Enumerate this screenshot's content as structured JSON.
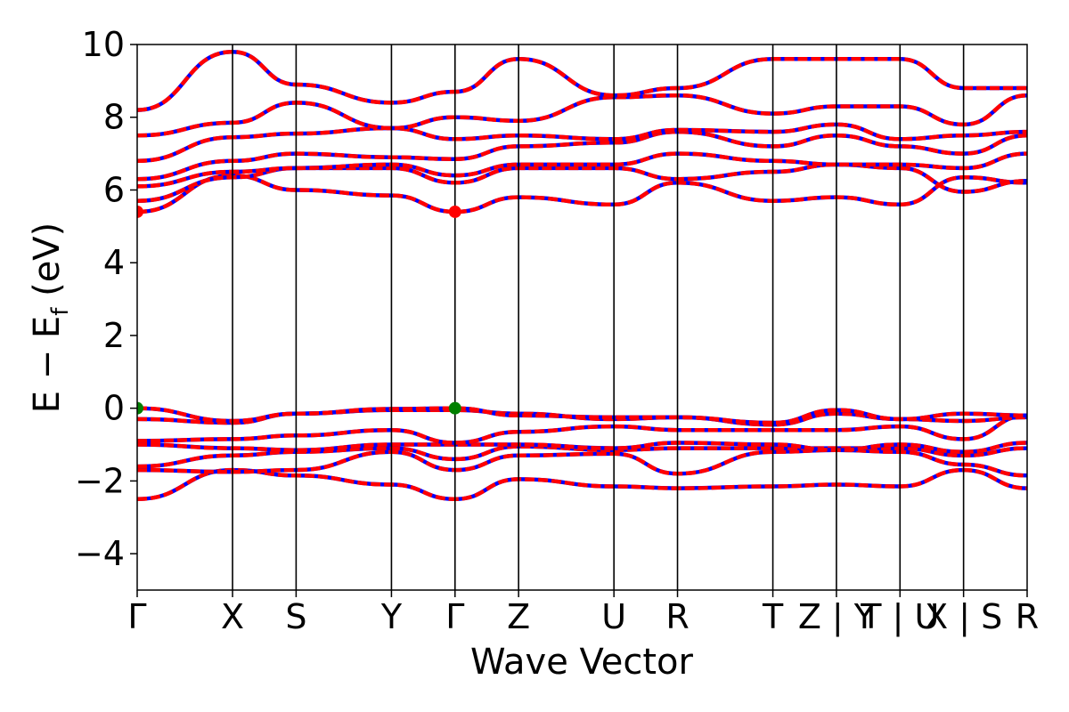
{
  "chart_data": {
    "type": "line",
    "xlabel": "Wave Vector",
    "ylabel": {
      "main": "E − E",
      "sub": "f",
      "unit": " (eV)"
    },
    "ylim": [
      -5,
      10
    ],
    "yticks": [
      -4,
      -2,
      0,
      2,
      4,
      6,
      8,
      10
    ],
    "ytick_labels": [
      "−4",
      "−2",
      "0",
      "2",
      "4",
      "6",
      "8",
      "10"
    ],
    "xlim": [
      0,
      14
    ],
    "kpoints": [
      {
        "x": 0.0,
        "label": "Γ"
      },
      {
        "x": 1.5,
        "label": "X"
      },
      {
        "x": 2.5,
        "label": "S"
      },
      {
        "x": 4.0,
        "label": "Y"
      },
      {
        "x": 5.0,
        "label": "Γ"
      },
      {
        "x": 6.0,
        "label": "Z"
      },
      {
        "x": 7.5,
        "label": "U"
      },
      {
        "x": 8.5,
        "label": "R"
      },
      {
        "x": 10.0,
        "label": "T"
      },
      {
        "x": 11.0,
        "label": "Z | Y"
      },
      {
        "x": 12.0,
        "label": "T | U"
      },
      {
        "x": 13.0,
        "label": "X | S"
      },
      {
        "x": 14.0,
        "label": "R"
      }
    ],
    "grid": false,
    "series_colors": {
      "primary": "#0000ff",
      "overlay": "#ff0000"
    },
    "band_energies_at_kpoints": [
      [
        -2.5,
        -1.7,
        -1.85,
        -2.1,
        -2.5,
        -1.95,
        -2.15,
        -2.2,
        -2.15,
        -2.1,
        -2.15,
        -1.7,
        -2.2
      ],
      [
        -1.7,
        -1.75,
        -1.7,
        -1.2,
        -1.7,
        -1.3,
        -1.25,
        -1.8,
        -1.2,
        -1.15,
        -1.2,
        -1.55,
        -1.85
      ],
      [
        -1.6,
        -1.3,
        -1.2,
        -1.1,
        -1.4,
        -1.05,
        -1.15,
        -1.1,
        -1.1,
        -1.1,
        -1.1,
        -1.3,
        -1.1
      ],
      [
        -1.0,
        -1.1,
        -1.15,
        -1.0,
        -1.0,
        -1.0,
        -1.1,
        -0.95,
        -1.0,
        -1.15,
        -1.0,
        -1.2,
        -0.95
      ],
      [
        -0.9,
        -0.85,
        -0.75,
        -0.6,
        -0.95,
        -0.65,
        -0.5,
        -0.6,
        -0.6,
        -0.6,
        -0.5,
        -0.85,
        -0.2
      ],
      [
        -0.3,
        -0.4,
        -0.15,
        -0.05,
        -0.05,
        -0.15,
        -0.3,
        -0.25,
        -0.45,
        -0.15,
        -0.3,
        -0.35,
        -0.25
      ],
      [
        0.0,
        -0.35,
        -0.15,
        -0.02,
        0.0,
        -0.2,
        -0.25,
        -0.25,
        -0.4,
        -0.05,
        -0.3,
        -0.15,
        -0.2
      ],
      [
        5.4,
        6.4,
        6.0,
        5.85,
        5.4,
        5.8,
        5.6,
        6.2,
        5.7,
        5.8,
        5.6,
        6.35,
        6.2
      ],
      [
        5.7,
        6.35,
        6.6,
        6.6,
        6.2,
        6.6,
        6.6,
        6.3,
        6.5,
        6.7,
        6.6,
        5.95,
        6.25
      ],
      [
        6.1,
        6.5,
        6.6,
        6.7,
        6.4,
        6.7,
        6.7,
        7.0,
        6.8,
        6.7,
        6.7,
        6.6,
        7.0
      ],
      [
        6.3,
        6.8,
        7.0,
        6.9,
        6.85,
        7.2,
        7.3,
        7.6,
        7.2,
        7.5,
        7.2,
        7.0,
        7.5
      ],
      [
        6.8,
        7.45,
        7.55,
        7.7,
        7.4,
        7.5,
        7.4,
        7.65,
        7.6,
        7.8,
        7.4,
        7.5,
        7.6
      ],
      [
        7.5,
        7.85,
        8.4,
        7.7,
        8.0,
        7.9,
        8.55,
        8.6,
        8.1,
        8.3,
        8.3,
        7.8,
        8.6
      ],
      [
        8.2,
        9.8,
        8.9,
        8.4,
        8.7,
        9.6,
        8.6,
        8.8,
        9.6,
        9.6,
        9.6,
        8.8,
        8.8
      ]
    ],
    "markers": [
      {
        "x": 0.0,
        "y": 5.4,
        "color": "#ff0000"
      },
      {
        "x": 5.0,
        "y": 5.4,
        "color": "#ff0000"
      },
      {
        "x": 0.0,
        "y": 0.0,
        "color": "#008000"
      },
      {
        "x": 5.0,
        "y": 0.0,
        "color": "#008000"
      }
    ]
  }
}
